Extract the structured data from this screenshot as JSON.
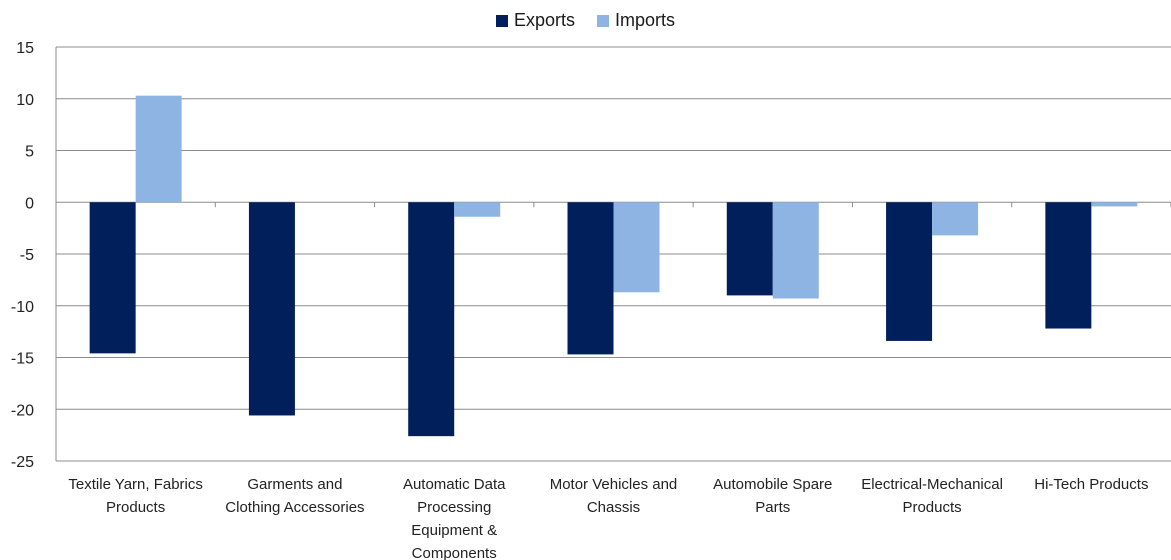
{
  "chart_data": {
    "type": "bar",
    "categories": [
      [
        "Textile Yarn, Fabrics",
        "Products"
      ],
      [
        "Garments and",
        "Clothing Accessories"
      ],
      [
        "Automatic Data",
        "Processing",
        "Equipment &",
        "Components"
      ],
      [
        "Motor Vehicles and",
        "Chassis"
      ],
      [
        "Automobile Spare",
        "Parts"
      ],
      [
        "Electrical-Mechanical",
        "Products"
      ],
      [
        "Hi-Tech Products"
      ]
    ],
    "series": [
      {
        "name": "Exports",
        "color": "#001f5b",
        "values": [
          -14.6,
          -20.6,
          -22.6,
          -14.7,
          -9.0,
          -13.4,
          -12.2
        ]
      },
      {
        "name": "Imports",
        "color": "#8db4e2",
        "values": [
          10.3,
          0,
          -1.4,
          -8.7,
          -9.3,
          -3.2,
          -0.4
        ]
      }
    ],
    "ylim": [
      -25,
      15
    ],
    "yticks": [
      15,
      10,
      5,
      0,
      -5,
      -10,
      -15,
      -20,
      -25
    ],
    "grid": true,
    "legend": "top-center",
    "title": "",
    "xlabel": "",
    "ylabel": ""
  }
}
